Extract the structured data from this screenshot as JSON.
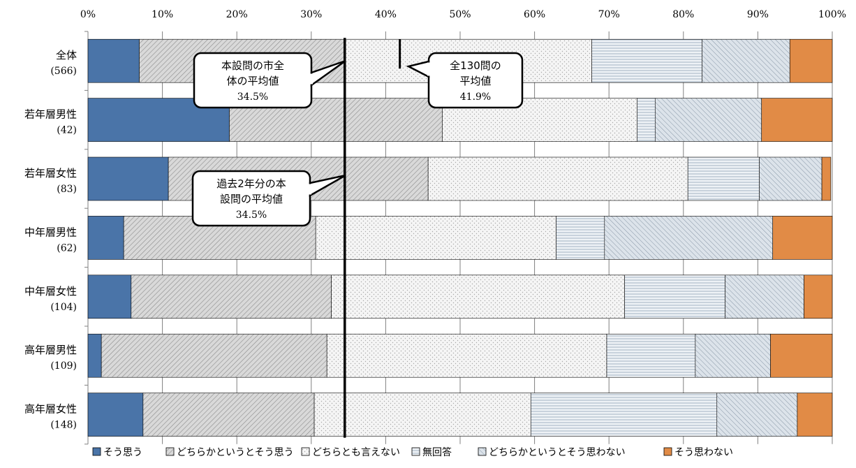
{
  "chart_data": {
    "type": "bar",
    "orientation": "horizontal",
    "stacked": true,
    "x_ticks": [
      "0%",
      "10%",
      "20%",
      "30%",
      "40%",
      "50%",
      "60%",
      "70%",
      "80%",
      "90%",
      "100%"
    ],
    "xlim": [
      0,
      100
    ],
    "categories": [
      {
        "label": "全体",
        "count": "(566)"
      },
      {
        "label": "若年層男性",
        "count": "(42)"
      },
      {
        "label": "若年層女性",
        "count": "(83)"
      },
      {
        "label": "中年層男性",
        "count": "(62)"
      },
      {
        "label": "中年層女性",
        "count": "(104)"
      },
      {
        "label": "高年層男性",
        "count": "(109)"
      },
      {
        "label": "高年層女性",
        "count": "(148)"
      }
    ],
    "series": [
      {
        "name": "そう思う",
        "color": "#4A74A8",
        "pattern": "solid",
        "values": [
          6.9,
          19.0,
          10.8,
          4.8,
          5.8,
          1.8,
          7.4
        ]
      },
      {
        "name": "どちらかというとそう思う",
        "color": "#D9D9D9",
        "pattern": "diagonal",
        "values": [
          27.6,
          28.6,
          34.9,
          25.8,
          26.9,
          30.3,
          23.0
        ]
      },
      {
        "name": "どちらとも言えない",
        "color": "#F4F4F4",
        "pattern": "dots",
        "values": [
          33.2,
          26.2,
          34.9,
          32.3,
          39.4,
          37.6,
          29.1
        ]
      },
      {
        "name": "無回答",
        "color": "#E8EEF4",
        "pattern": "horizontal",
        "values": [
          14.8,
          2.4,
          9.6,
          6.5,
          13.5,
          11.9,
          25.0
        ]
      },
      {
        "name": "どちらかというとそう思わない",
        "color": "#DCE3EA",
        "pattern": "crosshatch",
        "values": [
          11.8,
          14.3,
          8.4,
          22.6,
          10.6,
          10.1,
          10.8
        ]
      },
      {
        "name": "そう思わない",
        "color": "#E18B46",
        "pattern": "solid",
        "values": [
          5.7,
          9.5,
          1.2,
          8.0,
          3.8,
          8.3,
          4.7
        ]
      }
    ],
    "reference_lines": [
      {
        "value": 34.5,
        "span": "all"
      },
      {
        "value": 41.9,
        "span": "first"
      }
    ],
    "annotations": [
      {
        "lines": [
          "本設問の市全",
          "体の平均値"
        ],
        "value_text": "34.5%"
      },
      {
        "lines": [
          "全130問の",
          "平均値"
        ],
        "value_text": "41.9%"
      },
      {
        "lines": [
          "過去2年分の本",
          "設問の平均値"
        ],
        "value_text": "34.5%"
      }
    ],
    "legend_position": "bottom"
  }
}
